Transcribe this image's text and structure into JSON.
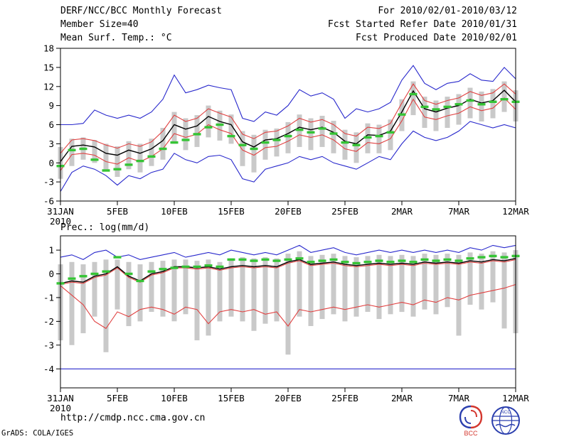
{
  "header": {
    "title": "DERF/NCC/BCC Monthly Forecast",
    "member_size": "Member Size=40",
    "right_lines": [
      "For 2010/02/01-2010/03/12",
      "Fcst Started Refer Date 2010/01/31",
      "Fcst Produced Date 2010/02/01"
    ]
  },
  "footer": {
    "url": "http://cmdp.ncc.cma.gov.cn",
    "credit": "GrADS: COLA/IGES",
    "logos": [
      {
        "label": "BCC"
      },
      {
        "label": "NCC"
      }
    ]
  },
  "colors": {
    "blue": "#2828cc",
    "red": "#e04040",
    "green": "#35c435",
    "black": "#000000",
    "bar": "#c9c9c9"
  },
  "chart_data": [
    {
      "name": "temp",
      "type": "line",
      "title": "Mean Surf. Temp.: °C",
      "x_year": "2010",
      "x_count": 41,
      "x_start": "31JAN2010",
      "x_step_days": 1,
      "ylim": [
        -6,
        18
      ],
      "yticks": [
        -6,
        -3,
        0,
        3,
        6,
        9,
        12,
        15,
        18
      ],
      "xticks": [
        {
          "pos": 0,
          "label": "31JAN"
        },
        {
          "pos": 5,
          "label": "5FEB"
        },
        {
          "pos": 10,
          "label": "10FEB"
        },
        {
          "pos": 15,
          "label": "15FEB"
        },
        {
          "pos": 20,
          "label": "20FEB"
        },
        {
          "pos": 25,
          "label": "25FEB"
        },
        {
          "pos": 30,
          "label": "2MAR"
        },
        {
          "pos": 35,
          "label": "7MAR"
        },
        {
          "pos": 40,
          "label": "12MAR"
        }
      ],
      "series": [
        {
          "name": "ensemble-spread-bars",
          "type": "bar",
          "color": "#c9c9c9",
          "high": [
            2.5,
            3.8,
            4.0,
            3.6,
            3.0,
            2.6,
            3.4,
            3.0,
            3.8,
            5.5,
            8.0,
            7.0,
            7.5,
            9.0,
            8.2,
            7.6,
            5.0,
            4.4,
            5.2,
            5.4,
            6.4,
            7.6,
            7.0,
            7.4,
            6.6,
            5.2,
            4.8,
            6.2,
            6.0,
            6.8,
            10.0,
            12.8,
            10.4,
            9.8,
            10.4,
            10.8,
            11.8,
            11.2,
            11.6,
            12.8,
            11.4
          ],
          "low": [
            -2.5,
            -0.5,
            0.5,
            0.0,
            -1.2,
            -2.2,
            -1.0,
            -1.5,
            -0.5,
            0.5,
            3.0,
            2.0,
            2.5,
            4.0,
            3.5,
            3.0,
            -0.5,
            -1.5,
            0.5,
            1.0,
            1.5,
            2.5,
            2.0,
            2.5,
            1.5,
            0.5,
            0.0,
            1.5,
            1.5,
            2.0,
            5.0,
            7.5,
            5.5,
            5.0,
            5.5,
            6.0,
            7.0,
            6.5,
            7.0,
            8.0,
            6.5
          ]
        },
        {
          "name": "ensemble-max",
          "type": "line",
          "color": "#2828cc",
          "values": [
            6.0,
            6.0,
            6.2,
            8.3,
            7.5,
            7.0,
            7.5,
            7.0,
            8.0,
            10.0,
            13.8,
            11.0,
            11.5,
            12.2,
            11.8,
            11.5,
            7.0,
            6.5,
            8.0,
            7.5,
            9.0,
            11.5,
            10.5,
            11.0,
            10.0,
            7.0,
            8.5,
            8.0,
            8.5,
            9.5,
            13.0,
            15.3,
            12.5,
            11.5,
            12.5,
            12.8,
            14.0,
            13.0,
            12.8,
            15.0,
            13.2
          ]
        },
        {
          "name": "ensemble-min",
          "type": "line",
          "color": "#2828cc",
          "values": [
            -4.5,
            -1.5,
            -0.5,
            -1.0,
            -2.0,
            -3.5,
            -2.0,
            -2.5,
            -1.5,
            -1.0,
            1.5,
            0.5,
            0.0,
            1.0,
            1.2,
            0.5,
            -2.5,
            -3.0,
            -1.0,
            -0.5,
            0.0,
            1.0,
            0.5,
            1.0,
            0.0,
            -0.5,
            -1.0,
            0.0,
            1.0,
            0.5,
            3.0,
            5.0,
            4.0,
            3.5,
            4.0,
            5.0,
            6.5,
            6.0,
            5.5,
            6.0,
            5.5
          ]
        },
        {
          "name": "upper-red-line",
          "type": "line",
          "color": "#e04040",
          "values": [
            1.5,
            3.6,
            3.8,
            3.5,
            2.8,
            2.3,
            3.0,
            2.6,
            3.3,
            5.0,
            7.5,
            6.5,
            7.0,
            8.5,
            7.8,
            7.2,
            4.5,
            3.8,
            4.8,
            5.0,
            5.8,
            7.0,
            6.4,
            6.8,
            6.0,
            4.6,
            4.2,
            5.6,
            5.4,
            6.2,
            9.4,
            12.4,
            9.8,
            9.2,
            9.8,
            10.2,
            11.2,
            10.6,
            11.0,
            12.4,
            10.8
          ]
        },
        {
          "name": "lower-red-line",
          "type": "line",
          "color": "#e04040",
          "values": [
            -1.2,
            1.3,
            1.5,
            1.2,
            0.2,
            -0.2,
            0.8,
            0.2,
            1.0,
            2.2,
            4.6,
            4.0,
            4.5,
            6.0,
            5.2,
            4.6,
            2.0,
            1.2,
            2.4,
            2.6,
            3.4,
            4.4,
            4.0,
            4.4,
            3.6,
            2.2,
            1.8,
            3.2,
            3.0,
            3.8,
            6.6,
            10.0,
            7.2,
            6.8,
            7.4,
            7.8,
            8.8,
            8.2,
            8.6,
            10.2,
            8.4
          ]
        },
        {
          "name": "ensemble-mean",
          "type": "line",
          "color": "#000000",
          "width": 1.4,
          "values": [
            0.2,
            2.6,
            2.8,
            2.5,
            1.5,
            1.2,
            2.0,
            1.5,
            2.2,
            3.5,
            6.0,
            5.3,
            5.8,
            7.3,
            6.5,
            6.0,
            3.3,
            2.5,
            3.6,
            3.8,
            4.6,
            5.6,
            5.2,
            5.6,
            4.8,
            3.4,
            3.0,
            4.4,
            4.3,
            5.0,
            8.0,
            11.3,
            8.5,
            8.0,
            8.6,
            9.0,
            10.0,
            9.4,
            9.8,
            11.4,
            9.6
          ]
        },
        {
          "name": "observation",
          "type": "dash",
          "color": "#35c435",
          "values": [
            -0.5,
            2.0,
            2.2,
            0.5,
            -1.2,
            -1.0,
            -0.3,
            0.3,
            1.0,
            2.2,
            3.2,
            3.6,
            4.5,
            5.6,
            6.0,
            4.2,
            2.8,
            2.2,
            3.2,
            3.6,
            4.2,
            5.2,
            4.8,
            5.4,
            4.6,
            3.2,
            2.8,
            4.0,
            4.2,
            4.8,
            7.6,
            10.8,
            8.8,
            8.4,
            8.8,
            9.2,
            9.8,
            9.2,
            9.6,
            10.0,
            9.6
          ]
        }
      ]
    },
    {
      "name": "prec",
      "type": "line",
      "title": "Prec.: log(mm/d)",
      "x_year": "2010",
      "x_count": 41,
      "x_start": "31JAN2010",
      "x_step_days": 1,
      "ylim": [
        -4.8,
        1.6
      ],
      "yticks": [
        -4,
        -3,
        -2,
        -1,
        0,
        1
      ],
      "xticks": [
        {
          "pos": 0,
          "label": "31JAN"
        },
        {
          "pos": 5,
          "label": "5FEB"
        },
        {
          "pos": 10,
          "label": "10FEB"
        },
        {
          "pos": 15,
          "label": "15FEB"
        },
        {
          "pos": 20,
          "label": "20FEB"
        },
        {
          "pos": 25,
          "label": "25FEB"
        },
        {
          "pos": 30,
          "label": "2MAR"
        },
        {
          "pos": 35,
          "label": "7MAR"
        },
        {
          "pos": 40,
          "label": "12MAR"
        }
      ],
      "series": [
        {
          "name": "ensemble-spread-bars",
          "type": "bar",
          "color": "#c9c9c9",
          "high": [
            0.4,
            0.5,
            0.4,
            0.5,
            0.6,
            0.6,
            0.5,
            0.4,
            0.5,
            0.55,
            0.6,
            0.6,
            0.55,
            0.6,
            0.5,
            0.65,
            0.7,
            0.65,
            0.7,
            0.65,
            0.85,
            0.95,
            0.75,
            0.8,
            0.85,
            0.75,
            0.7,
            0.75,
            0.8,
            0.75,
            0.8,
            0.75,
            0.85,
            0.8,
            0.85,
            0.8,
            0.9,
            0.85,
            0.95,
            0.9,
            1.0
          ],
          "low": [
            -2.8,
            -3.0,
            -2.5,
            -1.8,
            -3.3,
            -1.5,
            -2.2,
            -2.0,
            -1.6,
            -1.8,
            -2.0,
            -1.7,
            -2.8,
            -2.6,
            -2.0,
            -1.8,
            -2.0,
            -2.4,
            -2.1,
            -2.0,
            -3.4,
            -1.8,
            -2.2,
            -1.9,
            -1.7,
            -2.0,
            -1.8,
            -1.6,
            -1.9,
            -1.7,
            -1.6,
            -1.8,
            -1.5,
            -1.7,
            -1.4,
            -2.6,
            -1.3,
            -1.5,
            -1.2,
            -2.3,
            -2.5
          ]
        },
        {
          "name": "ensemble-max",
          "type": "line",
          "color": "#2828cc",
          "values": [
            0.7,
            0.8,
            0.6,
            0.9,
            1.0,
            0.7,
            0.8,
            0.6,
            0.7,
            0.8,
            0.9,
            0.7,
            0.8,
            0.9,
            0.8,
            1.0,
            0.9,
            0.8,
            0.9,
            0.8,
            1.0,
            1.2,
            0.9,
            1.0,
            1.1,
            0.9,
            0.8,
            0.9,
            1.0,
            0.9,
            1.0,
            0.9,
            1.0,
            0.9,
            1.0,
            0.9,
            1.1,
            1.0,
            1.2,
            1.1,
            1.2
          ]
        },
        {
          "name": "ensemble-min-floor",
          "type": "hline",
          "color": "#2828cc",
          "value": -4
        },
        {
          "name": "upper-red-line",
          "type": "line",
          "color": "#e04040",
          "values": [
            -0.45,
            -0.35,
            -0.4,
            -0.15,
            -0.05,
            0.25,
            -0.15,
            -0.35,
            -0.05,
            0.05,
            0.25,
            0.25,
            0.2,
            0.25,
            0.15,
            0.25,
            0.3,
            0.25,
            0.3,
            0.25,
            0.45,
            0.55,
            0.35,
            0.4,
            0.45,
            0.35,
            0.3,
            0.35,
            0.4,
            0.35,
            0.4,
            0.35,
            0.45,
            0.4,
            0.45,
            0.4,
            0.5,
            0.45,
            0.55,
            0.5,
            0.6
          ]
        },
        {
          "name": "lower-red-line",
          "type": "line",
          "color": "#e04040",
          "values": [
            -0.5,
            -0.9,
            -1.3,
            -2.0,
            -2.3,
            -1.6,
            -1.8,
            -1.5,
            -1.4,
            -1.5,
            -1.7,
            -1.4,
            -1.5,
            -2.1,
            -1.6,
            -1.5,
            -1.6,
            -1.5,
            -1.7,
            -1.6,
            -2.2,
            -1.5,
            -1.6,
            -1.5,
            -1.4,
            -1.5,
            -1.4,
            -1.3,
            -1.4,
            -1.3,
            -1.2,
            -1.3,
            -1.1,
            -1.2,
            -1.0,
            -1.1,
            -0.9,
            -0.8,
            -0.7,
            -0.6,
            -0.45
          ]
        },
        {
          "name": "ensemble-mean",
          "type": "line",
          "color": "#000000",
          "width": 1.4,
          "values": [
            -0.4,
            -0.3,
            -0.35,
            -0.1,
            0.0,
            0.3,
            -0.1,
            -0.3,
            0.0,
            0.1,
            0.3,
            0.3,
            0.25,
            0.3,
            0.2,
            0.3,
            0.35,
            0.3,
            0.35,
            0.3,
            0.5,
            0.6,
            0.4,
            0.45,
            0.5,
            0.4,
            0.35,
            0.4,
            0.45,
            0.4,
            0.45,
            0.4,
            0.5,
            0.45,
            0.5,
            0.45,
            0.55,
            0.5,
            0.6,
            0.55,
            0.65
          ]
        },
        {
          "name": "observation",
          "type": "dash",
          "color": "#35c435",
          "values": [
            -0.4,
            -0.2,
            -0.1,
            0.0,
            0.1,
            0.7,
            0.0,
            -0.3,
            0.1,
            0.2,
            0.25,
            0.3,
            0.3,
            0.35,
            0.3,
            0.6,
            0.6,
            0.55,
            0.6,
            0.55,
            0.6,
            0.65,
            0.5,
            0.55,
            0.6,
            0.5,
            0.45,
            0.5,
            0.55,
            0.5,
            0.55,
            0.5,
            0.6,
            0.55,
            0.6,
            0.55,
            0.65,
            0.7,
            0.75,
            0.7,
            0.75
          ]
        }
      ]
    }
  ]
}
